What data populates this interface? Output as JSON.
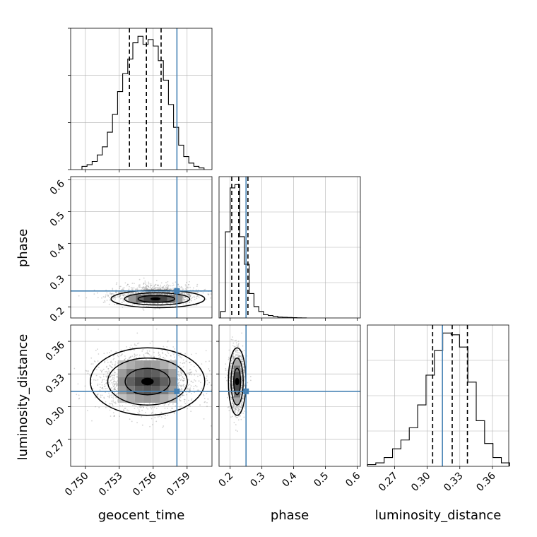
{
  "chart_data": {
    "type": "corner",
    "parameters": [
      "geocent_time",
      "phase",
      "luminosity_distance"
    ],
    "xlabels": [
      "geocent_time",
      "phase",
      "luminosity_distance"
    ],
    "ylabels": [
      "phase",
      "luminosity_distance"
    ],
    "ranges": {
      "geocent_time": [
        0.7487,
        0.7612
      ],
      "phase": [
        0.165,
        0.61
      ],
      "luminosity_distance": [
        0.245,
        0.375
      ]
    },
    "ticks": {
      "geocent_time": [
        "0.750",
        "0.753",
        "0.756",
        "0.759"
      ],
      "phase_x": [
        "0.2",
        "0.3",
        "0.4",
        "0.5",
        "0.6"
      ],
      "phase_y": [
        "0.2",
        "0.3",
        "0.4",
        "0.5",
        "0.6"
      ],
      "luminosity_distance_x": [
        "0.27",
        "0.30",
        "0.33",
        "0.36"
      ],
      "luminosity_distance_y": [
        "0.27",
        "0.30",
        "0.33",
        "0.36"
      ]
    },
    "truths": {
      "geocent_time": 0.7581,
      "phase": 0.25,
      "luminosity_distance": 0.314
    },
    "quantiles": {
      "geocent_time": [
        0.7539,
        0.7554,
        0.7567
      ],
      "phase": [
        0.205,
        0.227,
        0.256
      ],
      "luminosity_distance": [
        0.305,
        0.323,
        0.337
      ]
    },
    "histograms": {
      "geocent_time": {
        "edges": [
          0.7497,
          0.75015,
          0.7506,
          0.75105,
          0.7515,
          0.75195,
          0.7524,
          0.75285,
          0.7533,
          0.75375,
          0.7542,
          0.75465,
          0.7551,
          0.75555,
          0.756,
          0.75645,
          0.7569,
          0.75735,
          0.7578,
          0.75825,
          0.7587,
          0.75915,
          0.7596,
          0.76005,
          0.7605
        ],
        "counts": [
          2,
          3,
          5,
          9,
          14,
          23,
          34,
          48,
          59,
          68,
          78,
          82,
          77,
          80,
          76,
          67,
          55,
          40,
          26,
          15,
          8,
          4,
          2,
          1
        ]
      },
      "phase": {
        "edges": [
          0.17,
          0.185,
          0.2,
          0.215,
          0.23,
          0.245,
          0.26,
          0.275,
          0.29,
          0.305,
          0.32,
          0.335,
          0.35,
          0.365,
          0.38,
          0.395,
          0.41,
          0.425,
          0.44
        ],
        "counts": [
          4,
          53,
          80,
          82,
          50,
          33,
          15,
          7,
          4,
          2,
          1.5,
          1,
          0.5,
          0.4,
          0.3,
          0.2,
          0.1,
          0.05
        ]
      },
      "luminosity_distance": {
        "edges": [
          0.245,
          0.2527,
          0.2604,
          0.2681,
          0.2758,
          0.2835,
          0.2912,
          0.2989,
          0.3066,
          0.3143,
          0.322,
          0.3297,
          0.3374,
          0.3451,
          0.3528,
          0.3605,
          0.3682,
          0.3759
        ],
        "counts": [
          1,
          2,
          5,
          10,
          15,
          22,
          35,
          52,
          66,
          76,
          75,
          68,
          48,
          26,
          13,
          5,
          2
        ]
      }
    },
    "contour_levels": [
      "inner",
      "middle",
      "outer"
    ]
  }
}
